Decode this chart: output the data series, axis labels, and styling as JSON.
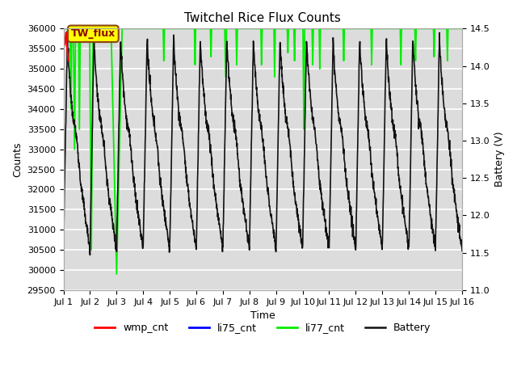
{
  "title": "Twitchel Rice Flux Counts",
  "xlabel": "Time",
  "ylabel_left": "Counts",
  "ylabel_right": "Battery (V)",
  "ylim_left": [
    29500,
    36000
  ],
  "ylim_right": [
    11.0,
    14.5
  ],
  "yticks_left": [
    29500,
    30000,
    30500,
    31000,
    31500,
    32000,
    32500,
    33000,
    33500,
    34000,
    34500,
    35000,
    35500,
    36000
  ],
  "yticks_right": [
    11.0,
    11.5,
    12.0,
    12.5,
    13.0,
    13.5,
    14.0,
    14.5
  ],
  "xtick_positions": [
    0,
    1,
    2,
    3,
    4,
    5,
    6,
    7,
    8,
    9,
    10,
    11,
    12,
    13,
    14,
    15
  ],
  "xtick_labels": [
    "Jul 1",
    "Jul 2",
    "Jul 3",
    "Jul 4",
    "Jul 5",
    "Jul 6",
    "Jul 7",
    "Jul 8",
    "Jul 9",
    "Jul 10",
    "Jul 11",
    "Jul 12",
    "Jul 13",
    "Jul 14",
    "Jul 15",
    "Jul 16"
  ],
  "bg_color": "#dcdcdc",
  "grid_color": "#ffffff",
  "battery_color": "#111111",
  "li77_color": "#00ee00",
  "wmp_color": "#ff0000",
  "li75_color": "#0000ff",
  "annotation_text": "TW_flux",
  "annotation_facecolor": "#ffff00",
  "annotation_edgecolor": "#8B4513",
  "annotation_textcolor": "#8B0000",
  "annotation_fontsize": 9,
  "title_fontsize": 11,
  "axis_fontsize": 9,
  "tick_fontsize": 8,
  "legend_fontsize": 9,
  "battery_xlim": [
    0,
    15
  ],
  "battery_daily_pattern": {
    "rise_time": 0.15,
    "max_v": 14.4,
    "min_v": 11.55,
    "plateau_v": 14.0,
    "noise": 0.04
  },
  "li77_dip_positions": [
    0.28,
    0.42,
    0.6,
    1.05,
    2.0,
    3.78,
    4.95,
    5.55,
    6.1,
    6.52,
    7.45,
    7.95,
    8.45,
    8.7,
    9.05,
    9.38,
    9.65,
    10.55,
    11.6,
    12.7,
    13.25,
    13.95,
    14.45
  ],
  "li77_dip_depths": [
    2000,
    3000,
    2500,
    5500,
    6100,
    800,
    900,
    700,
    1200,
    900,
    900,
    1200,
    600,
    800,
    2500,
    900,
    1000,
    800,
    900,
    900,
    800,
    700,
    800
  ],
  "li77_dip_widths": [
    4,
    5,
    4,
    8,
    25,
    3,
    3,
    3,
    4,
    3,
    3,
    3,
    3,
    3,
    4,
    3,
    3,
    3,
    3,
    3,
    3,
    3,
    3
  ]
}
